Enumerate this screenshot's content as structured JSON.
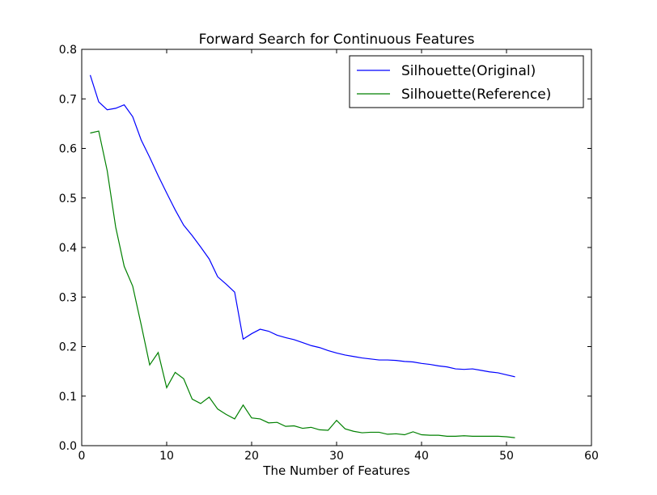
{
  "chart_data": {
    "type": "line",
    "title": "Forward Search for Continuous Features",
    "xlabel": "The Number of Features",
    "ylabel": "",
    "xlim": [
      0,
      60
    ],
    "ylim": [
      0,
      0.8
    ],
    "xticks": [
      "0",
      "10",
      "20",
      "30",
      "40",
      "50",
      "60"
    ],
    "yticks": [
      "0.0",
      "0.1",
      "0.2",
      "0.3",
      "0.4",
      "0.5",
      "0.6",
      "0.7",
      "0.8"
    ],
    "legend_position": "top-right",
    "grid": false,
    "x": [
      1,
      2,
      3,
      4,
      5,
      6,
      7,
      8,
      9,
      10,
      11,
      12,
      13,
      14,
      15,
      16,
      17,
      18,
      19,
      20,
      21,
      22,
      23,
      24,
      25,
      26,
      27,
      28,
      29,
      30,
      31,
      32,
      33,
      34,
      35,
      36,
      37,
      38,
      39,
      40,
      41,
      42,
      43,
      44,
      45,
      46,
      47,
      48,
      49,
      50,
      51
    ],
    "series": [
      {
        "name": "Silhouette(Original)",
        "color": "#0000ff",
        "values": [
          0.748,
          0.694,
          0.678,
          0.681,
          0.688,
          0.664,
          0.617,
          0.582,
          0.545,
          0.51,
          0.476,
          0.445,
          0.424,
          0.401,
          0.377,
          0.341,
          0.326,
          0.31,
          0.215,
          0.226,
          0.235,
          0.231,
          0.223,
          0.218,
          0.214,
          0.208,
          0.202,
          0.198,
          0.192,
          0.187,
          0.183,
          0.18,
          0.177,
          0.175,
          0.173,
          0.173,
          0.172,
          0.17,
          0.169,
          0.166,
          0.164,
          0.161,
          0.159,
          0.155,
          0.154,
          0.155,
          0.152,
          0.149,
          0.147,
          0.143,
          0.139
        ]
      },
      {
        "name": "Silhouette(Reference)",
        "color": "#008000",
        "values": [
          0.631,
          0.635,
          0.555,
          0.441,
          0.362,
          0.322,
          0.244,
          0.163,
          0.188,
          0.117,
          0.148,
          0.135,
          0.094,
          0.085,
          0.098,
          0.074,
          0.063,
          0.054,
          0.082,
          0.056,
          0.054,
          0.046,
          0.047,
          0.039,
          0.04,
          0.035,
          0.037,
          0.032,
          0.031,
          0.051,
          0.034,
          0.029,
          0.026,
          0.027,
          0.027,
          0.023,
          0.024,
          0.022,
          0.028,
          0.022,
          0.021,
          0.021,
          0.019,
          0.019,
          0.02,
          0.019,
          0.019,
          0.019,
          0.019,
          0.018,
          0.016
        ]
      }
    ]
  }
}
